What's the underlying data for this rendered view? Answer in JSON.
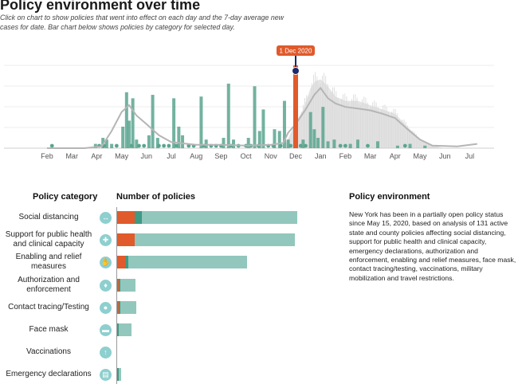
{
  "header": {
    "title": "Policy environment over time",
    "subtitle": "Click on chart to show policies that went into effect on each day and the 7-day average new cases for date. Bar chart below shows policies by category for selected day."
  },
  "chart_data": [
    {
      "type": "bar",
      "name": "timeline",
      "x_tick_labels": [
        "Feb",
        "Mar",
        "Apr",
        "May",
        "Jun",
        "Jul",
        "Aug",
        "Sep",
        "Oct",
        "Nov",
        "Dec",
        "Jan",
        "Feb",
        "Mar",
        "Apr",
        "May",
        "Jun",
        "Jul"
      ],
      "selected_label": "1 Dec 2020",
      "selected_month_index": 10.0,
      "policy_spikes": [
        {
          "m": 1.95,
          "v": 0.05
        },
        {
          "m": 2.25,
          "v": 0.12
        },
        {
          "m": 2.4,
          "v": 0.1
        },
        {
          "m": 2.6,
          "v": 0.05
        },
        {
          "m": 3.05,
          "v": 0.25
        },
        {
          "m": 3.2,
          "v": 0.65
        },
        {
          "m": 3.3,
          "v": 0.32
        },
        {
          "m": 3.45,
          "v": 0.58
        },
        {
          "m": 3.6,
          "v": 0.1
        },
        {
          "m": 4.1,
          "v": 0.15
        },
        {
          "m": 4.25,
          "v": 0.62
        },
        {
          "m": 4.45,
          "v": 0.12
        },
        {
          "m": 5.1,
          "v": 0.58
        },
        {
          "m": 5.3,
          "v": 0.25
        },
        {
          "m": 5.45,
          "v": 0.15
        },
        {
          "m": 6.2,
          "v": 0.6
        },
        {
          "m": 6.4,
          "v": 0.1
        },
        {
          "m": 7.1,
          "v": 0.12
        },
        {
          "m": 7.3,
          "v": 0.75
        },
        {
          "m": 7.5,
          "v": 0.1
        },
        {
          "m": 8.1,
          "v": 0.12
        },
        {
          "m": 8.35,
          "v": 0.72
        },
        {
          "m": 8.55,
          "v": 0.2
        },
        {
          "m": 8.7,
          "v": 0.45
        },
        {
          "m": 9.15,
          "v": 0.22
        },
        {
          "m": 9.35,
          "v": 0.2
        },
        {
          "m": 9.55,
          "v": 0.55
        },
        {
          "m": 9.7,
          "v": 0.1
        },
        {
          "m": 10.0,
          "v": 0.98
        },
        {
          "m": 10.3,
          "v": 0.1
        },
        {
          "m": 10.6,
          "v": 0.42
        },
        {
          "m": 10.75,
          "v": 0.22
        },
        {
          "m": 10.9,
          "v": 0.12
        },
        {
          "m": 11.1,
          "v": 0.48
        },
        {
          "m": 11.3,
          "v": 0.08
        },
        {
          "m": 11.55,
          "v": 0.1
        },
        {
          "m": 12.2,
          "v": 0.05
        },
        {
          "m": 12.5,
          "v": 0.1
        },
        {
          "m": 13.3,
          "v": 0.08
        },
        {
          "m": 14.1,
          "v": 0.03
        },
        {
          "m": 14.6,
          "v": 0.05
        },
        {
          "m": 15.2,
          "v": 0.03
        }
      ],
      "policy_dots_months": [
        0.2,
        2.1,
        2.3,
        2.8,
        3.4,
        3.7,
        3.9,
        4.5,
        4.7,
        4.9,
        5.2,
        5.7,
        5.9,
        6.3,
        6.6,
        6.8,
        7.0,
        7.4,
        7.7,
        8.0,
        8.2,
        8.5,
        8.9,
        9.1,
        9.4,
        9.8,
        10.2,
        10.4,
        11.8,
        12.0,
        12.9,
        14.4
      ],
      "cases_avg": [
        [
          0.0,
          0.0
        ],
        [
          1.5,
          0.0
        ],
        [
          2.2,
          0.02
        ],
        [
          2.6,
          0.2
        ],
        [
          3.0,
          0.42
        ],
        [
          3.3,
          0.5
        ],
        [
          3.6,
          0.38
        ],
        [
          4.0,
          0.28
        ],
        [
          4.5,
          0.15
        ],
        [
          5.0,
          0.07
        ],
        [
          6.0,
          0.04
        ],
        [
          7.0,
          0.04
        ],
        [
          8.0,
          0.03
        ],
        [
          9.0,
          0.04
        ],
        [
          9.5,
          0.06
        ],
        [
          9.7,
          0.18
        ],
        [
          10.0,
          0.28
        ],
        [
          10.4,
          0.45
        ],
        [
          10.75,
          0.62
        ],
        [
          11.0,
          0.7
        ],
        [
          11.3,
          0.58
        ],
        [
          11.6,
          0.52
        ],
        [
          12.0,
          0.48
        ],
        [
          12.5,
          0.46
        ],
        [
          13.0,
          0.44
        ],
        [
          13.5,
          0.4
        ],
        [
          14.0,
          0.35
        ],
        [
          14.5,
          0.22
        ],
        [
          15.0,
          0.1
        ],
        [
          15.5,
          0.03
        ],
        [
          16.5,
          0.02
        ],
        [
          17.3,
          0.05
        ]
      ],
      "cases_daily_envelope": [
        [
          9.6,
          0.05
        ],
        [
          10.0,
          0.3
        ],
        [
          10.3,
          0.45
        ],
        [
          10.6,
          0.7
        ],
        [
          10.8,
          0.78
        ],
        [
          11.0,
          0.8
        ],
        [
          11.3,
          0.72
        ],
        [
          11.6,
          0.6
        ],
        [
          12.0,
          0.55
        ],
        [
          12.5,
          0.55
        ],
        [
          13.0,
          0.5
        ],
        [
          13.5,
          0.45
        ],
        [
          14.0,
          0.4
        ],
        [
          14.5,
          0.25
        ],
        [
          15.0,
          0.1
        ],
        [
          15.5,
          0.03
        ],
        [
          16.0,
          0.0
        ]
      ]
    },
    {
      "type": "bar",
      "name": "policies_by_category",
      "orientation": "horizontal",
      "stacked": true,
      "categories": [
        "Social distancing",
        "Support for public health and clinical capacity",
        "Enabling and relief measures",
        "Authorization and enforcement",
        "Contact tracing/Testing",
        "Face mask",
        "Vaccinations",
        "Emergency declarations"
      ],
      "series": [
        {
          "color": "#e05a2b",
          "values": [
            9,
            9,
            4,
            1,
            1,
            0.5,
            0,
            0.5
          ]
        },
        {
          "color": "#3f9a84",
          "values": [
            4,
            0,
            2,
            0.5,
            0.5,
            0.5,
            0,
            0.5
          ]
        },
        {
          "color": "#92c7bd",
          "values": [
            81,
            84,
            62,
            8,
            8.5,
            6.5,
            0,
            1
          ]
        }
      ]
    }
  ],
  "left_panel": {
    "category_header": "Policy category",
    "count_header": "Number of policies",
    "categories": [
      {
        "label": "Social distancing",
        "icon": "social-distancing-icon",
        "glyph": "↔"
      },
      {
        "label": "Support for public health and clinical capacity",
        "icon": "hospital-icon",
        "glyph": "✚"
      },
      {
        "label": "Enabling and relief measures",
        "icon": "hand-icon",
        "glyph": "✋"
      },
      {
        "label": "Authorization and enforcement",
        "icon": "authority-icon",
        "glyph": "♦"
      },
      {
        "label": "Contact tracing/Testing",
        "icon": "contact-tracing-icon",
        "glyph": "●"
      },
      {
        "label": "Face mask",
        "icon": "face-mask-icon",
        "glyph": "▬"
      },
      {
        "label": "Vaccinations",
        "icon": "vaccine-icon",
        "glyph": "↑"
      },
      {
        "label": "Emergency declarations",
        "icon": "document-icon",
        "glyph": "▤"
      }
    ]
  },
  "right_panel": {
    "header": "Policy environment",
    "text": "New York has been in a partially open policy status since May 15, 2020, based on analysis of 131 active state and county policies affecting social distancing, support for public health and clinical capacity, emergency declarations, authorization and enforcement, enabling and relief measures, face mask, contact tracing/testing, vaccinations, military mobilization and travel restrictions."
  },
  "colors": {
    "teal_dark": "#3f9a84",
    "teal_light": "#92c7bd",
    "orange": "#e05a2b",
    "navy": "#1b2a6b",
    "gray_line": "#b5b5b5",
    "gray_fill": "#e4e4e4"
  }
}
